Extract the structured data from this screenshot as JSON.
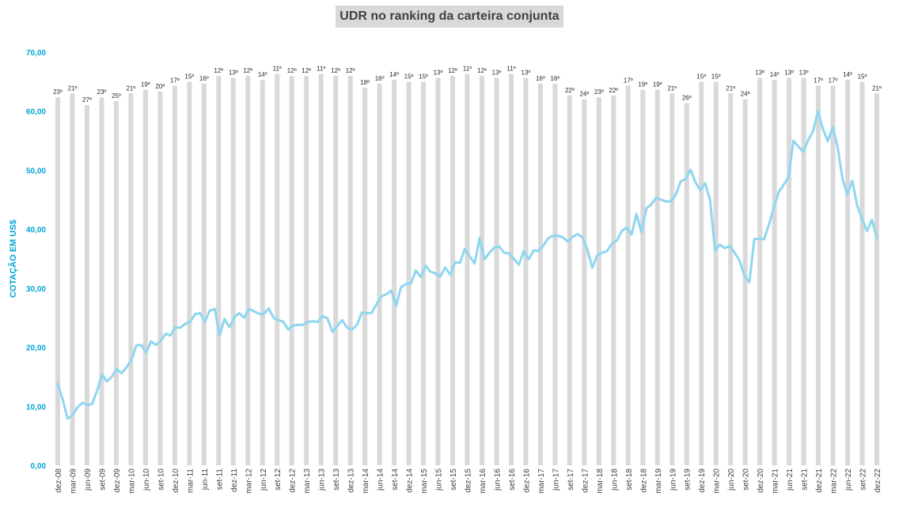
{
  "chart_data": {
    "type": "bar",
    "title": "UDR no ranking da carteira conjunta",
    "ylabel": "COTAÇÃO EM US$",
    "xlabel": "",
    "ylim": [
      0,
      70
    ],
    "y_ticks": [
      "0,00",
      "10,00",
      "20,00",
      "30,00",
      "40,00",
      "50,00",
      "60,00",
      "70,00"
    ],
    "grid": false,
    "legend": "none",
    "colors": {
      "bar": "#d9d9d9",
      "line": "#8fd6f0",
      "axis_text": "#00a6d6"
    },
    "bar_ranks": [
      "23º",
      "21º",
      "27º",
      "23º",
      "25º",
      "21º",
      "19º",
      "20º",
      "17º",
      "15º",
      "16º",
      "12º",
      "13º",
      "12º",
      "14º",
      "11º",
      "12º",
      "12º",
      "11º",
      "12º",
      "12º",
      "18º",
      "16º",
      "14º",
      "15º",
      "15º",
      "13º",
      "12º",
      "11º",
      "12º",
      "13º",
      "11º",
      "13º",
      "16º",
      "16º",
      "22º",
      "24º",
      "23º",
      "22º",
      "17º",
      "19º",
      "19º",
      "21º",
      "26º",
      "15º",
      "15º",
      "21º",
      "24º",
      "13º",
      "14º",
      "13º",
      "13º",
      "17º",
      "17º",
      "14º",
      "15º",
      "21º"
    ],
    "bar_heights_per_rank": "bars are a rank indicator; height mirrors rank (higher rank = taller bar)",
    "x_tick_labels": [
      "dez-08",
      "mar-09",
      "jun-09",
      "set-09",
      "dez-09",
      "mar-10",
      "jun-10",
      "set-10",
      "dez-10",
      "mar-11",
      "jun-11",
      "set-11",
      "dez-11",
      "mar-12",
      "jun-12",
      "set-12",
      "dez-12",
      "mar-13",
      "jun-13",
      "set-13",
      "dez-13",
      "mar-14",
      "jun-14",
      "set-14",
      "dez-14",
      "mar-15",
      "jun-15",
      "set-15",
      "dez-15",
      "mar-16",
      "jun-16",
      "set-16",
      "dez-16",
      "mar-17",
      "jun-17",
      "set-17",
      "dez-17",
      "mar-18",
      "jun-18",
      "set-18",
      "dez-18",
      "mar-19",
      "jun-19",
      "set-19",
      "dez-19",
      "mar-20",
      "jun-20",
      "set-20",
      "dez-20",
      "mar-21",
      "jun-21",
      "set-21",
      "dez-21",
      "mar-22",
      "jun-22",
      "set-22",
      "dez-22"
    ],
    "series": [
      {
        "type": "line",
        "values": [
          13.8,
          11.2,
          7.9,
          8.5,
          9.8,
          10.6,
          10.2,
          10.4,
          12.6,
          15.4,
          14.2,
          15.0,
          16.3,
          15.6,
          16.6,
          17.8,
          20.3,
          20.4,
          19.1,
          21.0,
          20.4,
          21.1,
          22.3,
          22.0,
          23.4,
          23.3,
          24.0,
          24.3,
          25.6,
          25.8,
          24.3,
          26.2,
          26.5,
          22.0,
          24.8,
          23.4,
          25.1,
          25.8,
          25.0,
          26.5,
          26.1,
          25.7,
          25.6,
          26.6,
          25.0,
          24.6,
          24.3,
          23.0,
          23.7,
          23.8,
          23.8,
          24.3,
          24.4,
          24.3,
          25.3,
          24.9,
          22.6,
          23.6,
          24.6,
          23.3,
          23.0,
          23.8,
          25.9,
          25.8,
          25.8,
          27.3,
          28.6,
          29.0,
          29.6,
          27.0,
          30.2,
          30.7,
          30.8,
          33.0,
          31.9,
          33.8,
          32.8,
          32.5,
          32.0,
          33.5,
          32.3,
          34.4,
          34.3,
          36.7,
          35.4,
          34.2,
          38.5,
          34.9,
          36.0,
          36.9,
          37.1,
          36.0,
          35.9,
          35.0,
          34.0,
          36.3,
          34.9,
          36.4,
          36.3,
          37.2,
          38.5,
          38.9,
          38.9,
          38.6,
          37.9,
          38.7,
          39.2,
          38.6,
          36.5,
          33.5,
          35.6,
          36.0,
          36.3,
          37.6,
          38.1,
          39.7,
          40.3,
          39.1,
          42.6,
          39.5,
          43.5,
          44.2,
          45.3,
          45.0,
          44.7,
          44.7,
          45.8,
          48.1,
          48.5,
          50.1,
          48.0,
          46.6,
          47.8,
          44.9,
          36.4,
          37.4,
          36.8,
          37.2,
          36.0,
          34.7,
          32.1,
          31.0,
          38.3,
          38.4,
          38.3,
          40.8,
          43.7,
          46.3,
          47.5,
          48.8,
          55.0,
          54.0,
          53.1,
          55.1,
          56.6,
          60.0,
          57.0,
          54.9,
          57.3,
          54.0,
          48.5,
          45.9,
          48.2,
          44.0,
          41.7,
          39.7,
          41.6,
          38.5
        ]
      }
    ]
  }
}
